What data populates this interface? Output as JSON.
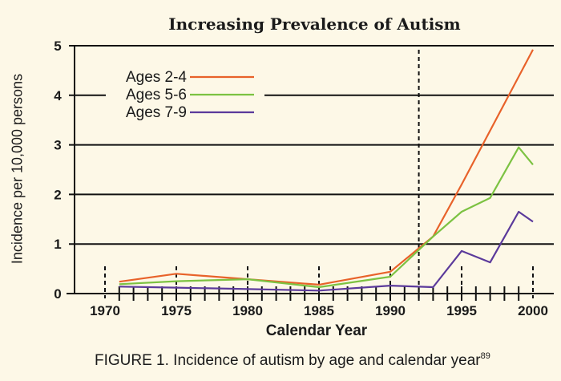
{
  "chart_data": {
    "type": "line",
    "title": "Increasing Prevalence of Autism",
    "xlabel": "Calendar Year",
    "ylabel": "Incidence per 10,000 persons",
    "caption": "FIGURE 1. Incidence of autism by age and calendar year",
    "caption_superscript": "89",
    "xlim": [
      1967,
      2001.5
    ],
    "ylim": [
      0,
      5
    ],
    "x_ticks": [
      1970,
      1975,
      1980,
      1985,
      1990,
      1995,
      2000
    ],
    "x_minor_ticks_from": 1971,
    "x_minor_ticks_to": 1999,
    "y_ticks": [
      0,
      1,
      2,
      3,
      4,
      5
    ],
    "grid": "horizontal",
    "reference_line_year": 1992,
    "legend_position": "top-left",
    "series": [
      {
        "name": "Ages 2-4",
        "color": "#e8622a",
        "x": [
          1971,
          1975,
          1980,
          1985,
          1990,
          1993,
          1995,
          2000
        ],
        "y": [
          0.24,
          0.4,
          0.29,
          0.18,
          0.44,
          1.15,
          2.2,
          4.92
        ]
      },
      {
        "name": "Ages 5-6",
        "color": "#7cc242",
        "x": [
          1971,
          1975,
          1980,
          1985,
          1990,
          1993,
          1995,
          1997,
          1999,
          2000
        ],
        "y": [
          0.19,
          0.25,
          0.29,
          0.13,
          0.34,
          1.15,
          1.65,
          1.93,
          2.95,
          2.6
        ]
      },
      {
        "name": "Ages 7-9",
        "color": "#5b3a9b",
        "x": [
          1971,
          1975,
          1980,
          1985,
          1990,
          1993,
          1995,
          1997,
          1999,
          2000
        ],
        "y": [
          0.14,
          0.12,
          0.09,
          0.06,
          0.16,
          0.13,
          0.86,
          0.63,
          1.65,
          1.45
        ]
      }
    ]
  }
}
